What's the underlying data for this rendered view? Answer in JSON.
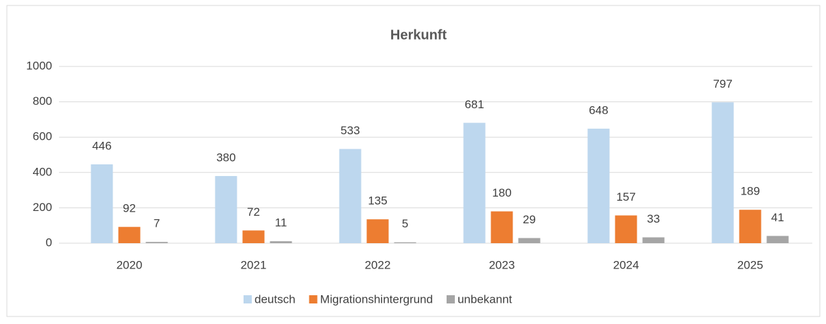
{
  "chart_data": {
    "type": "bar",
    "title": "Herkunft",
    "categories": [
      "2020",
      "2021",
      "2022",
      "2023",
      "2024",
      "2025"
    ],
    "series": [
      {
        "name": "deutsch",
        "color": "#bdd7ee",
        "values": [
          446,
          380,
          533,
          681,
          648,
          797
        ]
      },
      {
        "name": "Migrationshintergrund",
        "color": "#ed7d31",
        "values": [
          92,
          72,
          135,
          180,
          157,
          189
        ]
      },
      {
        "name": "unbekannt",
        "color": "#a5a5a5",
        "values": [
          7,
          11,
          5,
          29,
          33,
          41
        ]
      }
    ],
    "ylim": [
      0,
      1000
    ],
    "yticks": [
      0,
      200,
      400,
      600,
      800,
      1000
    ],
    "grid": true,
    "legend": "bottom"
  }
}
